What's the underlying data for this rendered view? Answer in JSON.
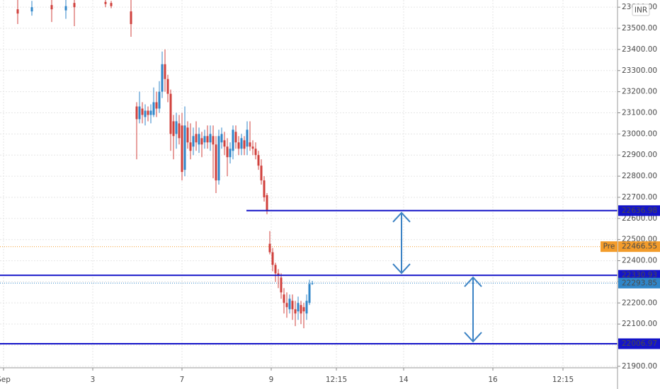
{
  "chart_data": {
    "type": "candlestick",
    "currency": "INR",
    "ylim": [
      21893,
      23634
    ],
    "yticks": [
      {
        "value": 21900,
        "label": "21900.00"
      },
      {
        "value": 22000,
        "label": "22000.00"
      },
      {
        "value": 22100,
        "label": "22100.00"
      },
      {
        "value": 22200,
        "label": "22200.00"
      },
      {
        "value": 22300,
        "label": "22300.00"
      },
      {
        "value": 22400,
        "label": "22400.00"
      },
      {
        "value": 22500,
        "label": "22500.00"
      },
      {
        "value": 22600,
        "label": "22600.00"
      },
      {
        "value": 22700,
        "label": "22700.00"
      },
      {
        "value": 22800,
        "label": "22800.00"
      },
      {
        "value": 22900,
        "label": "22900.00"
      },
      {
        "value": 23000,
        "label": "23000.00"
      },
      {
        "value": 23100,
        "label": "23100.00"
      },
      {
        "value": 23200,
        "label": "23200.00"
      },
      {
        "value": 23300,
        "label": "23300.00"
      },
      {
        "value": 23400,
        "label": "23400.00"
      },
      {
        "value": 23500,
        "label": "23500.00"
      },
      {
        "value": 23600,
        "label": "23600.00"
      }
    ],
    "xlim": [
      -2.25,
      215.75
    ],
    "xticks": [
      {
        "value": -1,
        "label": "Sep"
      },
      {
        "value": 30.5,
        "label": "3"
      },
      {
        "value": 62,
        "label": "7"
      },
      {
        "value": 93.5,
        "label": "9"
      },
      {
        "value": 116.5,
        "label": "12:15"
      },
      {
        "value": 140.25,
        "label": "14"
      },
      {
        "value": 171.75,
        "label": "16"
      },
      {
        "value": 196.5,
        "label": "12:15"
      }
    ],
    "grid": true,
    "up_color": "#2f86c9",
    "down_color": "#d0403c",
    "x": [
      4,
      9,
      16,
      21,
      24,
      35,
      37,
      44,
      46,
      47,
      48,
      49,
      50,
      51,
      52,
      53,
      54,
      55,
      56,
      57,
      58,
      59,
      60,
      61,
      62,
      63,
      64,
      65,
      66,
      67,
      68,
      69,
      70,
      71,
      72,
      73,
      74,
      75,
      76,
      77,
      78,
      79,
      80,
      81,
      82,
      83,
      84,
      85,
      86,
      87,
      88,
      89,
      90,
      91,
      92,
      93,
      94,
      95,
      96,
      97,
      98,
      99,
      100,
      101,
      102,
      103,
      104,
      105,
      106,
      107,
      108
    ],
    "open": [
      23590,
      23580,
      23610,
      23585,
      23620,
      23625,
      23620,
      23580,
      23130,
      23070,
      23120,
      23080,
      23110,
      23090,
      23090,
      23150,
      23120,
      23200,
      23330,
      23260,
      23190,
      23060,
      23000,
      23050,
      23040,
      22830,
      23030,
      22960,
      22940,
      23000,
      22950,
      22980,
      22960,
      22990,
      22960,
      22990,
      22950,
      22780,
      22960,
      22970,
      22940,
      22890,
      22920,
      23010,
      22960,
      22930,
      22970,
      22940,
      22960,
      22940,
      22930,
      22900,
      22850,
      22780,
      22710,
      22480,
      22440,
      22380,
      22340,
      22320,
      22240,
      22200,
      22170,
      22210,
      22170,
      22160,
      22190,
      22180,
      22150,
      22200,
      22290
    ],
    "high": [
      23634,
      23630,
      23634,
      23634,
      23634,
      23634,
      23630,
      23634,
      23150,
      23200,
      23150,
      23140,
      23130,
      23140,
      23220,
      23200,
      23250,
      23390,
      23400,
      23280,
      23210,
      23090,
      23100,
      23090,
      23100,
      23130,
      23060,
      23050,
      23030,
      23060,
      23030,
      23010,
      23020,
      23040,
      23040,
      23040,
      22990,
      23020,
      23030,
      23010,
      22980,
      22960,
      23040,
      23040,
      22990,
      23000,
      22990,
      23060,
      23060,
      22970,
      22960,
      22920,
      22880,
      22800,
      22720,
      22540,
      22460,
      22390,
      22360,
      22340,
      22270,
      22250,
      22240,
      22240,
      22210,
      22230,
      22210,
      22200,
      22240,
      22310,
      22305
    ],
    "low": [
      23520,
      23560,
      23530,
      23545,
      23510,
      23600,
      23595,
      23460,
      22880,
      23050,
      23050,
      23040,
      23060,
      23050,
      23080,
      23080,
      23100,
      23170,
      23200,
      23150,
      22920,
      22880,
      22930,
      22950,
      22780,
      22800,
      22930,
      22880,
      22900,
      22920,
      22910,
      22890,
      22930,
      22930,
      22920,
      22790,
      22720,
      22760,
      22930,
      22900,
      22800,
      22860,
      22880,
      22930,
      22900,
      22900,
      22900,
      22900,
      22920,
      22900,
      22880,
      22830,
      22760,
      22680,
      22620,
      22430,
      22350,
      22300,
      22270,
      22220,
      22150,
      22130,
      22150,
      22120,
      22090,
      22120,
      22100,
      22080,
      22120,
      22190,
      22285
    ],
    "close": [
      23570,
      23600,
      23590,
      23605,
      23600,
      23615,
      23605,
      23520,
      23070,
      23130,
      23090,
      23110,
      23090,
      23110,
      23150,
      23120,
      23200,
      23330,
      23260,
      23190,
      23000,
      22990,
      23060,
      22980,
      22820,
      23040,
      22960,
      22920,
      22990,
      22960,
      23000,
      22950,
      22990,
      22960,
      23000,
      22950,
      22780,
      22990,
      23000,
      22940,
      22890,
      22930,
      23020,
      22960,
      22930,
      22980,
      22930,
      23020,
      22940,
      22930,
      22900,
      22850,
      22780,
      22700,
      22640,
      22440,
      22380,
      22340,
      22330,
      22250,
      22200,
      22180,
      22220,
      22170,
      22150,
      22200,
      22150,
      22160,
      22210,
      22290,
      22293.85
    ],
    "levels": [
      {
        "value": 22636.98,
        "x_start": 84.75
      },
      {
        "value": 22330.93
      },
      {
        "value": 22006.97
      }
    ],
    "level_color": "#1414c8",
    "arrows_x": [
      139.5,
      164.75
    ],
    "pre_market": {
      "label": "Pre",
      "value": 22466.55
    },
    "last_price": 22293.85
  }
}
